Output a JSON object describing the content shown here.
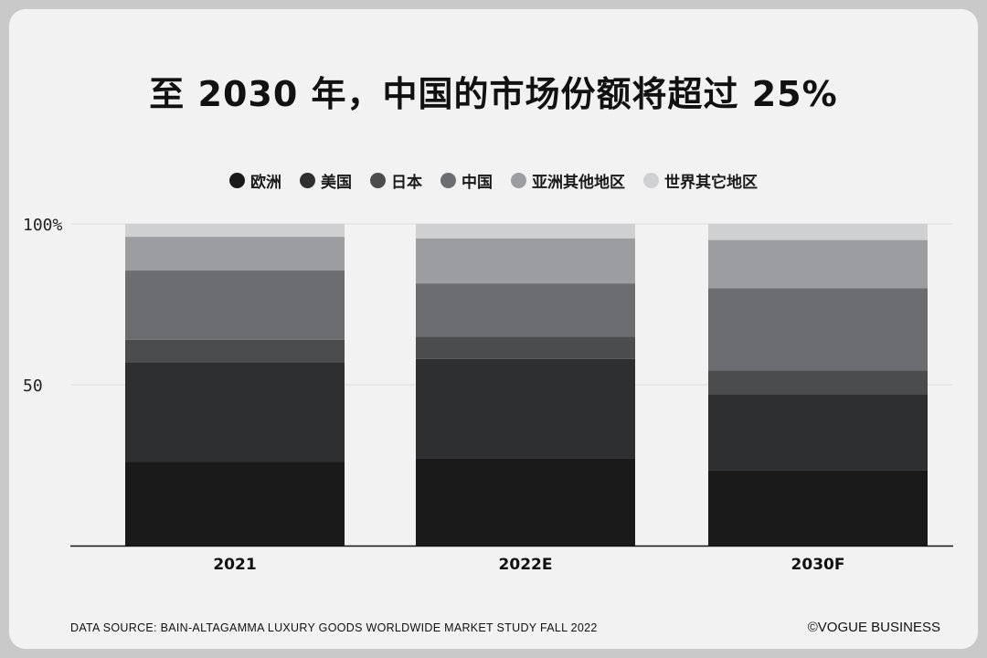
{
  "title": "至 2030 年，中国的市场份额将超过 25%",
  "footer": {
    "source": "DATA SOURCE: BAIN-ALTAGAMMA LUXURY GOODS WORLDWIDE MARKET STUDY FALL 2022",
    "brand": "©VOGUE BUSINESS"
  },
  "chart_data": {
    "type": "bar",
    "stacked": true,
    "categories": [
      "2021",
      "2022E",
      "2030F"
    ],
    "series": [
      {
        "name": "欧洲",
        "color": "#1a1a1a",
        "values": [
          26,
          27,
          23.5
        ]
      },
      {
        "name": "美国",
        "color": "#2e2f31",
        "values": [
          31,
          31,
          23.5
        ]
      },
      {
        "name": "日本",
        "color": "#4b4c4e",
        "values": [
          7,
          7,
          7.5
        ]
      },
      {
        "name": "中国",
        "color": "#6c6d70",
        "values": [
          21.5,
          16.5,
          25.5
        ]
      },
      {
        "name": "亚洲其他地区",
        "color": "#9c9da0",
        "values": [
          10.5,
          14,
          15
        ]
      },
      {
        "name": "世界其它地区",
        "color": "#cfd0d2",
        "values": [
          4,
          4.5,
          5
        ]
      }
    ],
    "y_ticks": [
      {
        "value": 50,
        "label": "50"
      },
      {
        "value": 100,
        "label": "100%"
      }
    ],
    "ylim": [
      0,
      100
    ],
    "grid": true,
    "legend_position": "top"
  }
}
